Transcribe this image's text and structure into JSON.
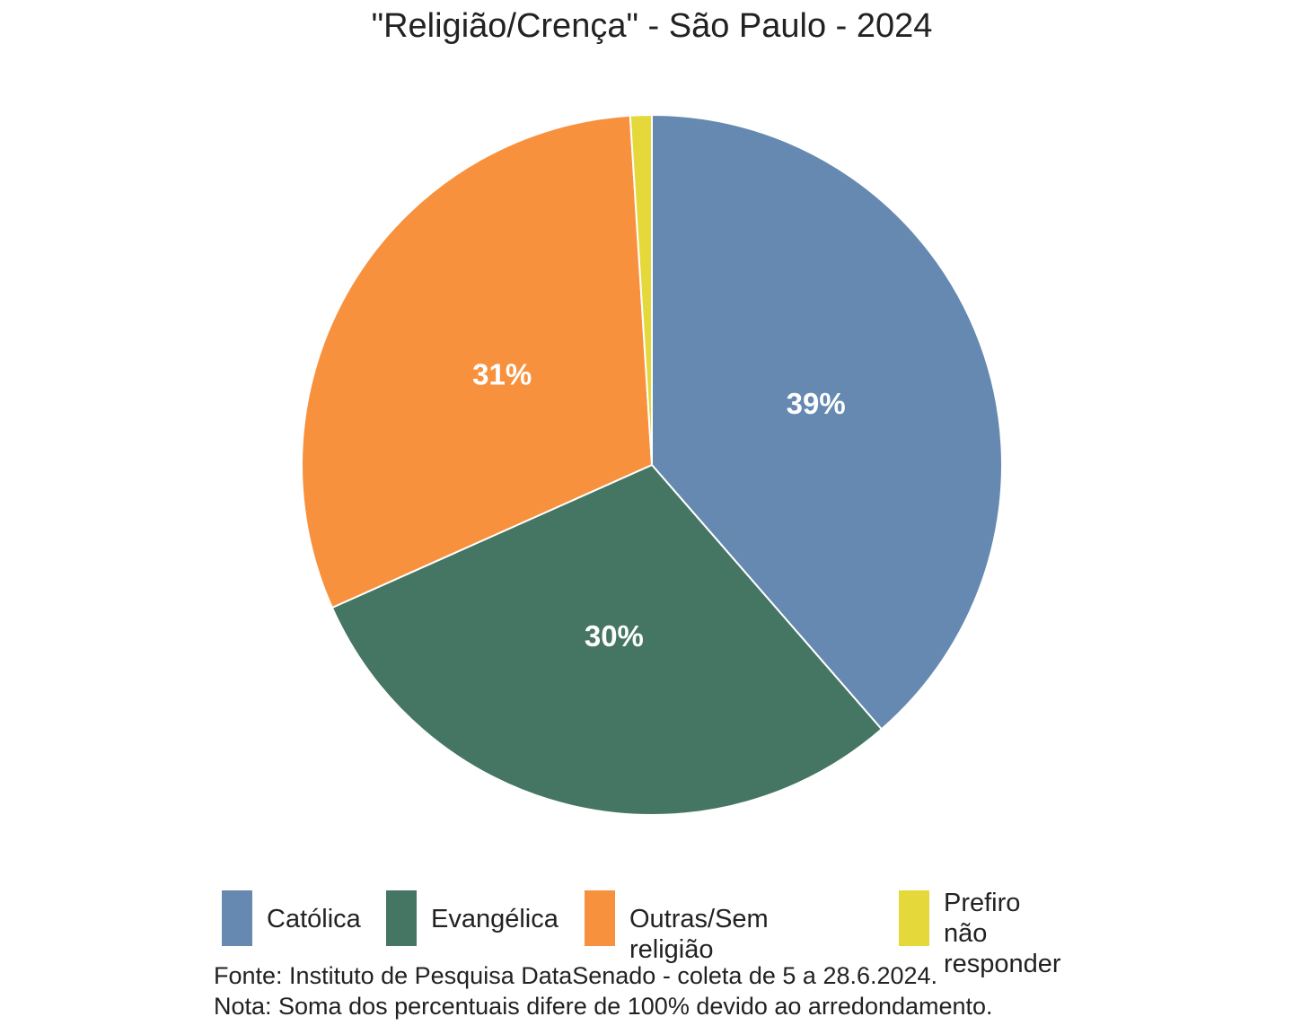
{
  "chart_data": {
    "type": "pie",
    "title": "\"Religião/Crença\" - São Paulo - 2024",
    "categories": [
      "Católica",
      "Evangélica",
      "Outras/Sem religião",
      "Prefiro não responder"
    ],
    "values": [
      39,
      30,
      31,
      1
    ],
    "data_labels": [
      "39%",
      "30%",
      "31%",
      ""
    ],
    "colors": [
      "#6589b0",
      "#457563",
      "#f7913d",
      "#e5d83a"
    ],
    "legend_placement": "bottom",
    "legend_labels": [
      "Católica",
      "Evangélica",
      "Outras/Sem religião",
      "Prefiro não\nresponder"
    ]
  },
  "caption": {
    "source": "Fonte: Instituto de Pesquisa DataSenado - coleta de 5 a 28.6.2024.",
    "note": "Nota: Soma dos percentuais difere de 100% devido ao arredondamento."
  }
}
